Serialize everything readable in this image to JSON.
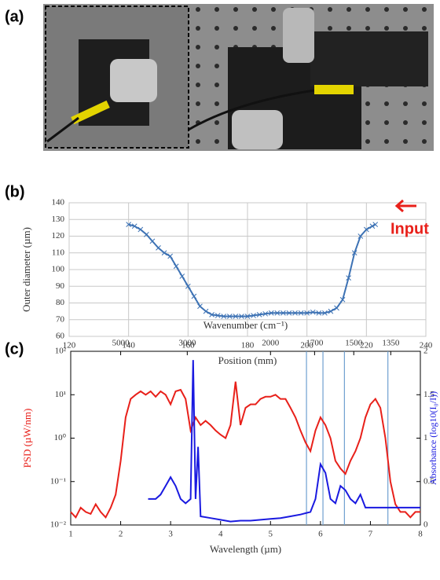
{
  "photo": {
    "label": "(a)"
  },
  "chart_data": [
    {
      "type": "line",
      "panel_label": "(b)",
      "xlabel": "Position (mm)",
      "ylabel": "Outer diameter (µm)",
      "xlim": [
        120,
        240
      ],
      "xticks": [
        120,
        140,
        160,
        180,
        200,
        220,
        240
      ],
      "ylim": [
        60,
        140
      ],
      "yticks": [
        60,
        70,
        80,
        90,
        100,
        110,
        120,
        130,
        140
      ],
      "grid": true,
      "annotation": "Input",
      "annotation_color": "#e8201a",
      "series": [
        {
          "color": "#3d72b4",
          "marker": "x",
          "x": [
            140,
            142,
            144,
            146,
            148,
            150,
            152,
            154,
            156,
            158,
            160,
            162,
            164,
            166,
            168,
            170,
            172,
            174,
            176,
            178,
            180,
            182,
            184,
            186,
            188,
            190,
            192,
            194,
            196,
            198,
            200,
            202,
            204,
            206,
            208,
            210,
            212,
            214,
            216,
            218,
            220,
            222,
            223
          ],
          "values": [
            127,
            126,
            124,
            121,
            117,
            113,
            110,
            108,
            102,
            96,
            90,
            84,
            78,
            75,
            73,
            72.5,
            72,
            72,
            72,
            72,
            72,
            72.5,
            73,
            73.5,
            74,
            74,
            74,
            74,
            74,
            74,
            74,
            74.5,
            74,
            74,
            75,
            77,
            82,
            95,
            110,
            120,
            124,
            126,
            127
          ]
        }
      ]
    },
    {
      "type": "line",
      "panel_label": "(c)",
      "xlabel": "Wavelength (µm)",
      "x2label": "Wavenumber (cm⁻¹)",
      "ylabel": "PSD (µW/nm)",
      "ylabel_color": "#e8201a",
      "y2label": "Absorbance (log10(I₀/I))",
      "y2label_color": "#1a1ae0",
      "xlim": [
        1,
        8
      ],
      "xticks": [
        1,
        2,
        3,
        4,
        5,
        6,
        7,
        8
      ],
      "x2ticks": [
        5000,
        3000,
        2000,
        1700,
        1500,
        1350
      ],
      "ylim": [
        0.01,
        100
      ],
      "ylog": true,
      "yticks": [
        {
          "value": 0.01,
          "label": "10⁻²"
        },
        {
          "value": 0.1,
          "label": "10⁻¹"
        },
        {
          "value": 1,
          "label": "10⁰"
        },
        {
          "value": 10,
          "label": "10¹"
        },
        {
          "value": 100,
          "label": "10²"
        }
      ],
      "y2lim": [
        0,
        2
      ],
      "y2ticks": [
        0,
        0.5,
        1,
        1.5,
        2
      ],
      "grid": false,
      "reference_lines": [
        5.72,
        6.05,
        6.48,
        7.35
      ],
      "reference_color": "#6fa0d0",
      "series": [
        {
          "color": "#e8201a",
          "x": [
            1.0,
            1.1,
            1.2,
            1.3,
            1.4,
            1.5,
            1.6,
            1.7,
            1.8,
            1.9,
            2.0,
            2.1,
            2.2,
            2.3,
            2.4,
            2.5,
            2.6,
            2.7,
            2.8,
            2.9,
            3.0,
            3.1,
            3.2,
            3.3,
            3.4,
            3.5,
            3.6,
            3.7,
            3.8,
            3.9,
            4.0,
            4.1,
            4.2,
            4.3,
            4.4,
            4.5,
            4.6,
            4.7,
            4.8,
            4.9,
            5.0,
            5.1,
            5.2,
            5.3,
            5.4,
            5.5,
            5.6,
            5.7,
            5.8,
            5.9,
            6.0,
            6.1,
            6.2,
            6.3,
            6.4,
            6.5,
            6.6,
            6.7,
            6.8,
            6.9,
            7.0,
            7.1,
            7.2,
            7.3,
            7.4,
            7.5,
            7.6,
            7.7,
            7.8,
            7.9,
            8.0
          ],
          "values": [
            0.02,
            0.015,
            0.025,
            0.02,
            0.018,
            0.03,
            0.02,
            0.015,
            0.025,
            0.05,
            0.3,
            3,
            8,
            10,
            12,
            10,
            12,
            9,
            12,
            10,
            6,
            12,
            13,
            8,
            1.5,
            3,
            2,
            2.5,
            2,
            1.5,
            1.2,
            1,
            2,
            20,
            2,
            5,
            6,
            6,
            8,
            9,
            9,
            10,
            8,
            8,
            5,
            3,
            1.5,
            0.8,
            0.5,
            1.5,
            3,
            2,
            1,
            0.3,
            0.2,
            0.15,
            0.3,
            0.5,
            1,
            3,
            6,
            8,
            5,
            1,
            0.1,
            0.03,
            0.02,
            0.02,
            0.015,
            0.02,
            0.02
          ]
        },
        {
          "color": "#1a1ae0",
          "axis": "y2",
          "x": [
            2.55,
            2.7,
            2.8,
            2.9,
            3.0,
            3.1,
            3.2,
            3.3,
            3.4,
            3.45,
            3.5,
            3.55,
            3.6,
            3.8,
            4.0,
            4.2,
            4.4,
            4.6,
            4.8,
            5.0,
            5.2,
            5.4,
            5.6,
            5.8,
            5.9,
            6.0,
            6.1,
            6.2,
            6.3,
            6.4,
            6.5,
            6.6,
            6.7,
            6.8,
            6.9,
            7.0,
            7.5,
            8.0
          ],
          "values": [
            0.3,
            0.3,
            0.35,
            0.45,
            0.55,
            0.45,
            0.3,
            0.25,
            0.3,
            1.9,
            0.3,
            0.9,
            0.1,
            0.08,
            0.06,
            0.04,
            0.05,
            0.05,
            0.06,
            0.07,
            0.08,
            0.1,
            0.12,
            0.15,
            0.3,
            0.7,
            0.6,
            0.3,
            0.25,
            0.45,
            0.4,
            0.3,
            0.25,
            0.35,
            0.2,
            0.2,
            0.2,
            0.2
          ]
        }
      ]
    }
  ]
}
